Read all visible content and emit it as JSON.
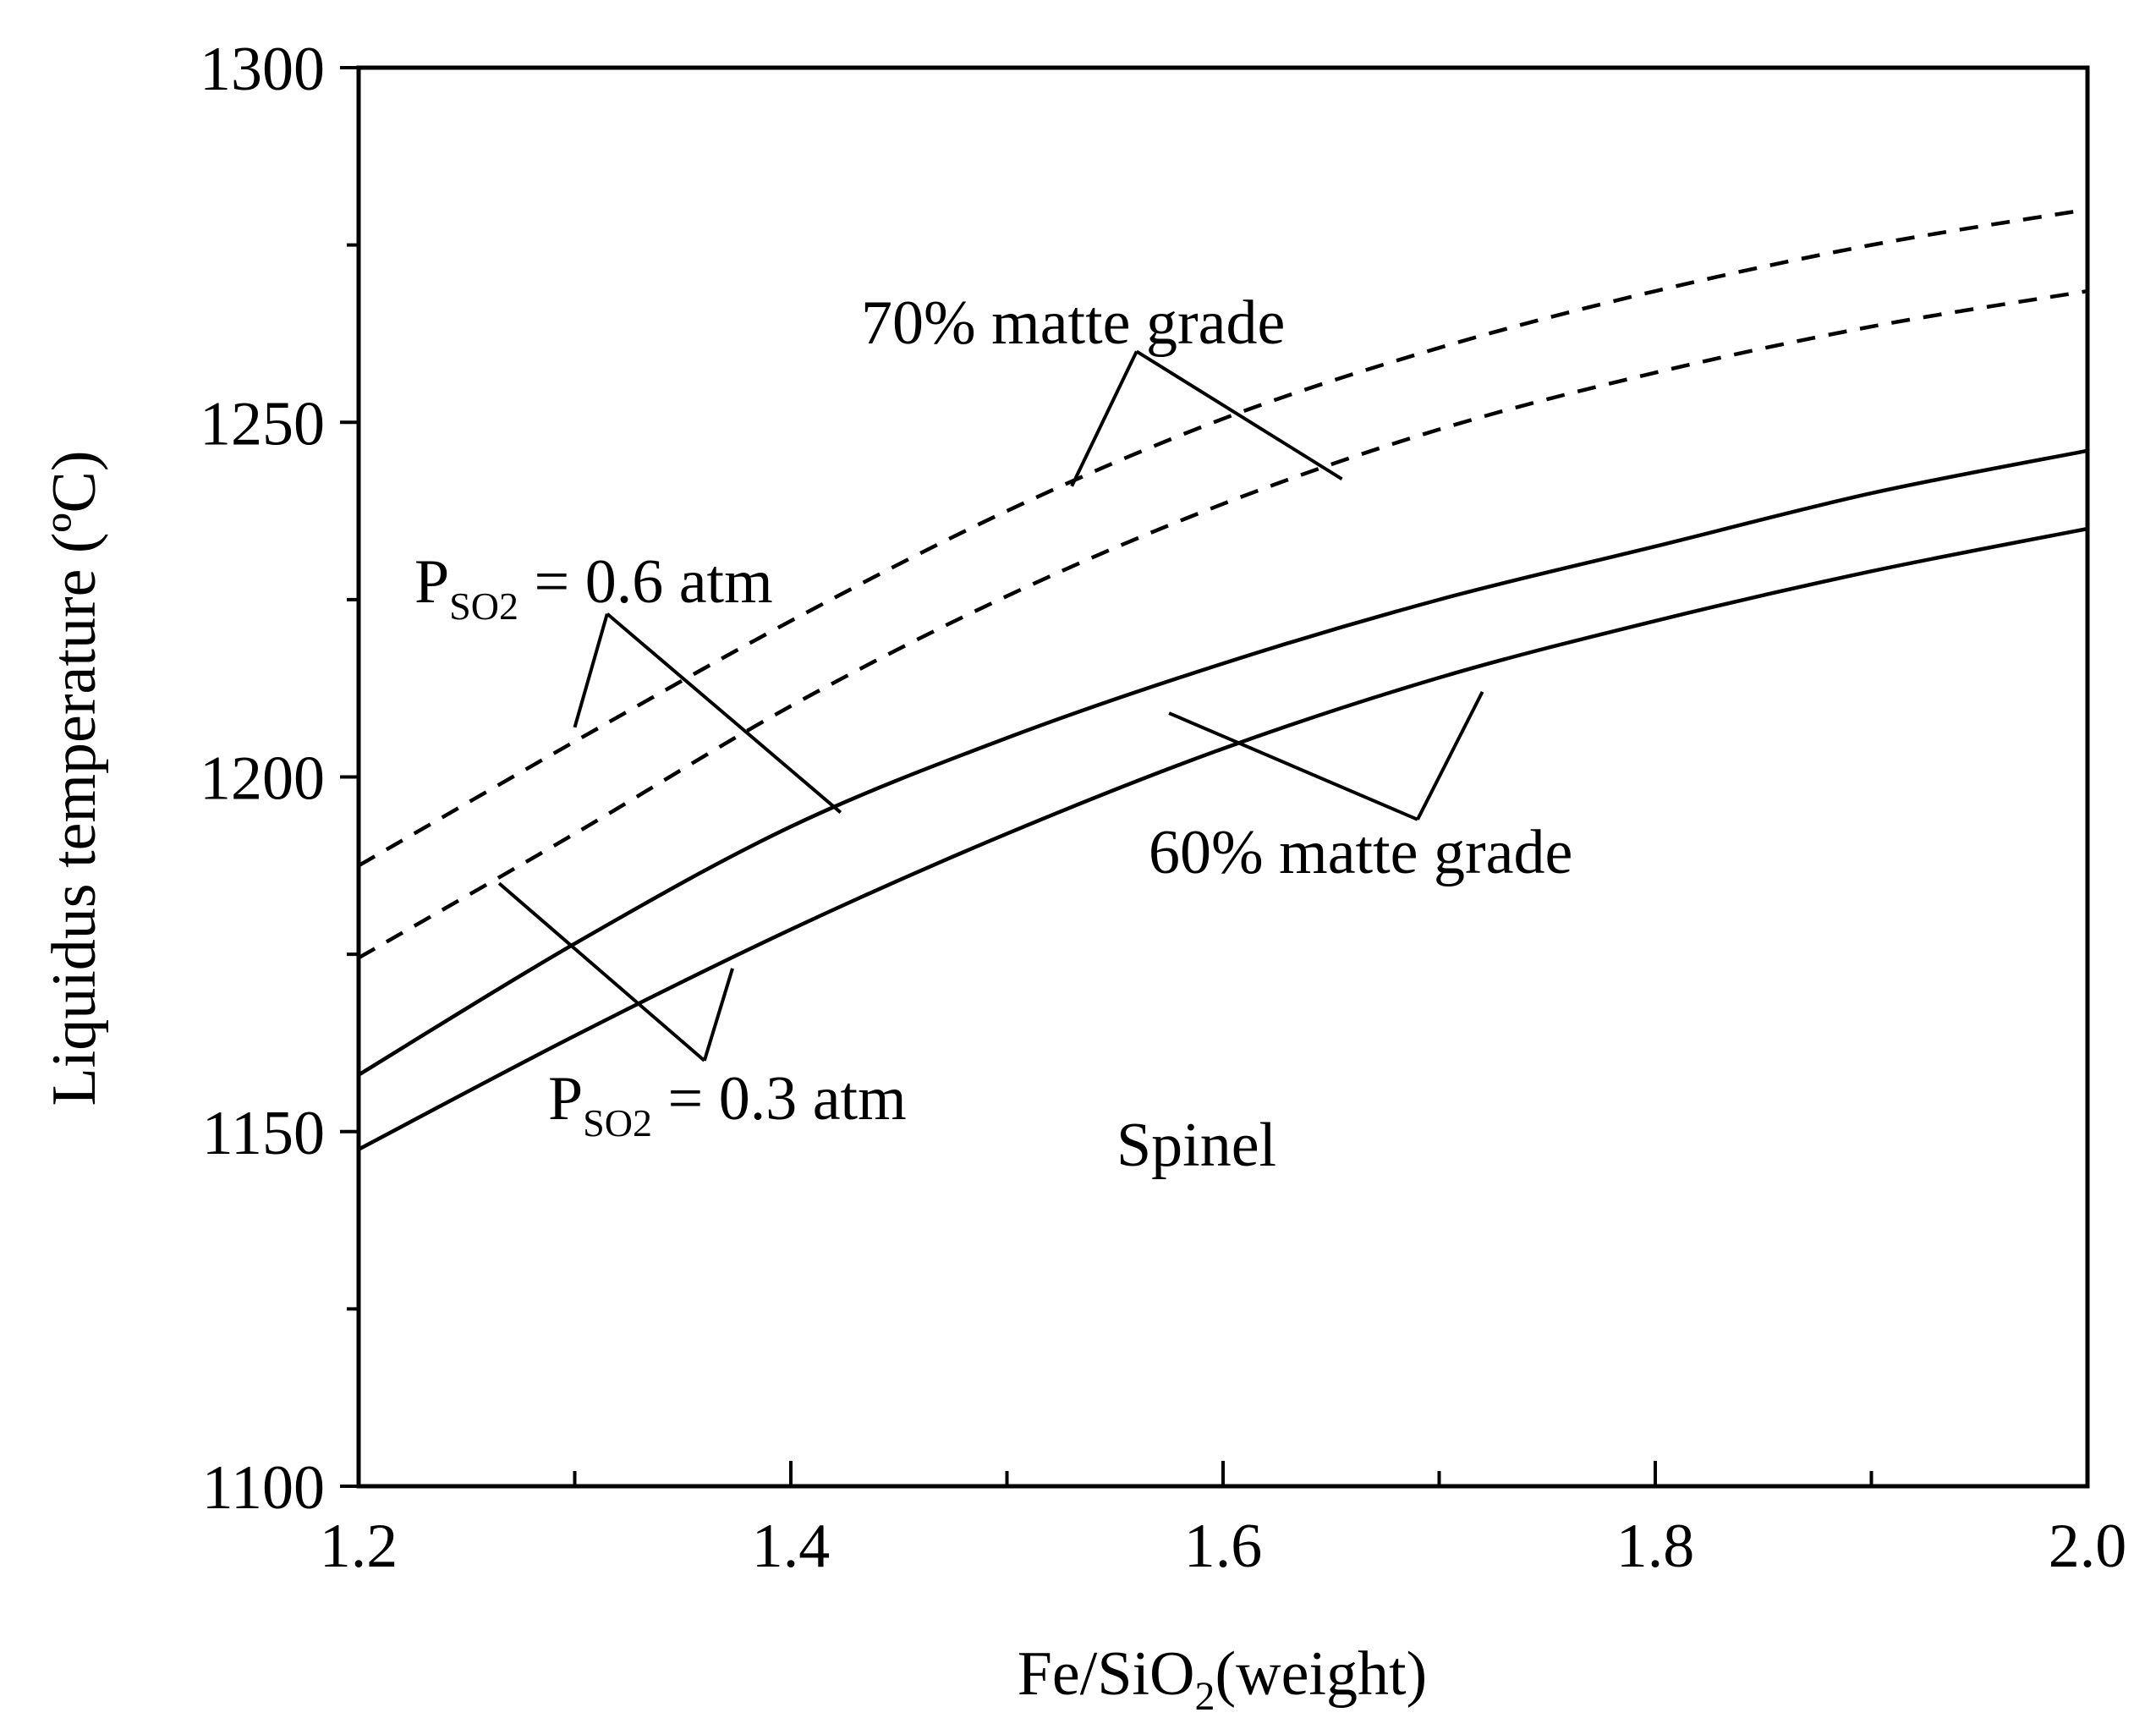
{
  "chart_data": {
    "type": "line",
    "title": "",
    "xlabel_main": "Fe/SiO",
    "xlabel_sub": "2",
    "xlabel_tail": "(weight)",
    "ylabel": "Liquidus temperature (ºC)",
    "xlim": [
      1.2,
      2.0
    ],
    "ylim": [
      1100,
      1300
    ],
    "xticks": [
      1.2,
      1.4,
      1.6,
      1.8,
      2.0
    ],
    "xtick_labels": [
      "1.2",
      "1.4",
      "1.6",
      "1.8",
      "2.0"
    ],
    "xminor": [
      1.3,
      1.5,
      1.7,
      1.9
    ],
    "yticks": [
      1100,
      1150,
      1200,
      1250,
      1300
    ],
    "ytick_labels": [
      "1100",
      "1150",
      "1200",
      "1250",
      "1300"
    ],
    "yminor": [
      1125,
      1175,
      1225,
      1275
    ],
    "x": [
      1.2,
      1.3,
      1.4,
      1.5,
      1.6,
      1.7,
      1.8,
      1.9,
      2.0
    ],
    "series": [
      {
        "name": "70% matte grade, PSO2 = 0.6 atm",
        "style": "dashed",
        "values": [
          1187.5,
          1205,
          1222,
          1237.5,
          1250.5,
          1260.5,
          1268.5,
          1275,
          1280
        ]
      },
      {
        "name": "70% matte grade, PSO2 = 0.3 atm",
        "style": "dashed",
        "values": [
          1174.5,
          1192,
          1210,
          1225.5,
          1238.5,
          1249,
          1257,
          1263.5,
          1268.5
        ]
      },
      {
        "name": "60% matte grade, PSO2 = 0.6 atm",
        "style": "solid",
        "values": [
          1158,
          1176.5,
          1193,
          1205.5,
          1216,
          1225,
          1232.5,
          1240,
          1246
        ]
      },
      {
        "name": "60% matte grade, PSO2 = 0.3 atm",
        "style": "solid",
        "values": [
          1147.5,
          1163.5,
          1178.5,
          1192,
          1204,
          1214,
          1222,
          1229,
          1235
        ]
      }
    ],
    "annotations": {
      "label_70": "70% matte grade",
      "label_60": "60% matte grade",
      "label_p06_main": "P",
      "label_p06_sub": "SO2",
      "label_p06_tail": " = 0.6 atm",
      "label_p03_main": "P",
      "label_p03_sub": "SO2",
      "label_p03_tail": " = 0.3 atm",
      "label_region": "Spinel"
    }
  }
}
